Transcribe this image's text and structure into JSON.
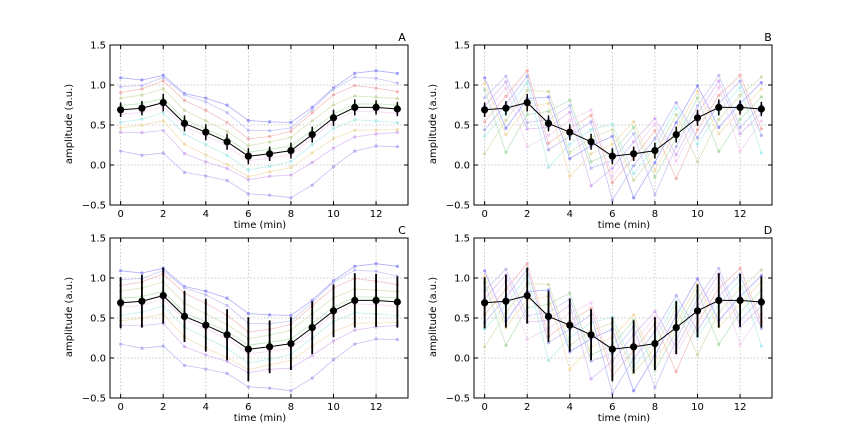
{
  "figure": {
    "colors": {
      "mean": "#000000",
      "grid": "#b8b8b8",
      "series": [
        "#8a8af5",
        "#b5b5f2",
        "#f0a8a8",
        "#c7d8a0",
        "#a8d8a8",
        "#f0c8f0",
        "#a8e8e8",
        "#f0d8a0",
        "#d0a8f0",
        "#a8a8f0"
      ]
    }
  },
  "chart_data": [
    {
      "type": "line",
      "label": "A",
      "xlabel": "time (min)",
      "ylabel": "amplitude (a.u.)",
      "xlim": [
        -0.5,
        13.5
      ],
      "ylim": [
        -0.5,
        1.5
      ],
      "xticks": [
        0,
        2,
        4,
        6,
        8,
        10,
        12
      ],
      "xtick_labels": [
        "0",
        "2",
        "4",
        "6",
        "8",
        "10",
        "12"
      ],
      "yticks": [
        -0.5,
        0.0,
        0.5,
        1.0,
        1.5
      ],
      "ytick_labels": [
        "−0.5",
        "0.0",
        "0.5",
        "1.0",
        "1.5"
      ],
      "grid": true,
      "error_bars": "narrow",
      "mode": "parallel",
      "mean": {
        "x": [
          0,
          1,
          2,
          3,
          4,
          5,
          6,
          7,
          8,
          9,
          10,
          11,
          12,
          13
        ],
        "y": [
          0.69,
          0.71,
          0.78,
          0.52,
          0.41,
          0.29,
          0.11,
          0.14,
          0.18,
          0.38,
          0.59,
          0.72,
          0.72,
          0.7
        ],
        "err": [
          0.09,
          0.09,
          0.11,
          0.1,
          0.1,
          0.1,
          0.1,
          0.09,
          0.1,
          0.1,
          0.1,
          0.1,
          0.09,
          0.09
        ]
      },
      "offsets": [
        0.4,
        0.33,
        0.25,
        0.15,
        0.05,
        -0.05,
        -0.15,
        -0.25,
        -0.33,
        -0.55
      ]
    },
    {
      "type": "line",
      "label": "B",
      "xlabel": "time (min)",
      "ylabel": "amplitude (a.u.)",
      "xlim": [
        -0.5,
        13.5
      ],
      "ylim": [
        -0.5,
        1.5
      ],
      "xticks": [
        0,
        2,
        4,
        6,
        8,
        10,
        12
      ],
      "xtick_labels": [
        "0",
        "2",
        "4",
        "6",
        "8",
        "10",
        "12"
      ],
      "yticks": [
        -0.5,
        0.0,
        0.5,
        1.0,
        1.5
      ],
      "ytick_labels": [
        "−0.5",
        "0.0",
        "0.5",
        "1.0",
        "1.5"
      ],
      "grid": true,
      "error_bars": "narrow",
      "mode": "scrambled",
      "mean": {
        "x": [
          0,
          1,
          2,
          3,
          4,
          5,
          6,
          7,
          8,
          9,
          10,
          11,
          12,
          13
        ],
        "y": [
          0.69,
          0.71,
          0.78,
          0.52,
          0.41,
          0.29,
          0.11,
          0.14,
          0.18,
          0.38,
          0.59,
          0.72,
          0.72,
          0.7
        ],
        "err": [
          0.09,
          0.09,
          0.11,
          0.1,
          0.1,
          0.1,
          0.1,
          0.09,
          0.1,
          0.1,
          0.1,
          0.1,
          0.09,
          0.09
        ]
      },
      "offsets": [
        0.4,
        0.33,
        0.25,
        0.15,
        0.05,
        -0.05,
        -0.15,
        -0.25,
        -0.33,
        -0.55
      ]
    },
    {
      "type": "line",
      "label": "C",
      "xlabel": "time (min)",
      "ylabel": "amplitude (a.u.)",
      "xlim": [
        -0.5,
        13.5
      ],
      "ylim": [
        -0.5,
        1.5
      ],
      "xticks": [
        0,
        2,
        4,
        6,
        8,
        10,
        12
      ],
      "xtick_labels": [
        "0",
        "2",
        "4",
        "6",
        "8",
        "10",
        "12"
      ],
      "yticks": [
        -0.5,
        0.0,
        0.5,
        1.0,
        1.5
      ],
      "ytick_labels": [
        "−0.5",
        "0.0",
        "0.5",
        "1.0",
        "1.5"
      ],
      "grid": true,
      "error_bars": "wide",
      "mode": "parallel",
      "mean": {
        "x": [
          0,
          1,
          2,
          3,
          4,
          5,
          6,
          7,
          8,
          9,
          10,
          11,
          12,
          13
        ],
        "y": [
          0.69,
          0.71,
          0.78,
          0.52,
          0.41,
          0.29,
          0.11,
          0.14,
          0.18,
          0.38,
          0.59,
          0.72,
          0.72,
          0.7
        ],
        "err": [
          0.32,
          0.33,
          0.35,
          0.32,
          0.33,
          0.32,
          0.4,
          0.33,
          0.33,
          0.33,
          0.33,
          0.34,
          0.33,
          0.32
        ]
      },
      "offsets": [
        0.4,
        0.33,
        0.25,
        0.15,
        0.05,
        -0.05,
        -0.15,
        -0.25,
        -0.33,
        -0.55
      ]
    },
    {
      "type": "line",
      "label": "D",
      "xlabel": "time (min)",
      "ylabel": "amplitude (a.u.)",
      "xlim": [
        -0.5,
        13.5
      ],
      "ylim": [
        -0.5,
        1.5
      ],
      "xticks": [
        0,
        2,
        4,
        6,
        8,
        10,
        12
      ],
      "xtick_labels": [
        "0",
        "2",
        "4",
        "6",
        "8",
        "10",
        "12"
      ],
      "yticks": [
        -0.5,
        0.0,
        0.5,
        1.0,
        1.5
      ],
      "ytick_labels": [
        "−0.5",
        "0.0",
        "0.5",
        "1.0",
        "1.5"
      ],
      "grid": true,
      "error_bars": "wide",
      "mode": "scrambled",
      "mean": {
        "x": [
          0,
          1,
          2,
          3,
          4,
          5,
          6,
          7,
          8,
          9,
          10,
          11,
          12,
          13
        ],
        "y": [
          0.69,
          0.71,
          0.78,
          0.52,
          0.41,
          0.29,
          0.11,
          0.14,
          0.18,
          0.38,
          0.59,
          0.72,
          0.72,
          0.7
        ],
        "err": [
          0.32,
          0.33,
          0.35,
          0.32,
          0.33,
          0.32,
          0.4,
          0.33,
          0.33,
          0.33,
          0.33,
          0.34,
          0.33,
          0.32
        ]
      },
      "offsets": [
        0.4,
        0.33,
        0.25,
        0.15,
        0.05,
        -0.05,
        -0.15,
        -0.25,
        -0.33,
        -0.55
      ]
    }
  ]
}
